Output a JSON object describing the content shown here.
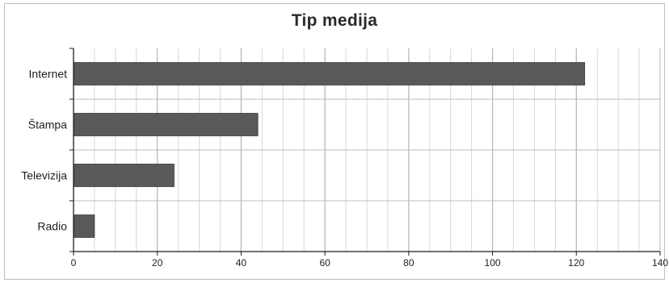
{
  "chart_data": {
    "type": "bar",
    "orientation": "horizontal",
    "title": "Tip medija",
    "categories": [
      "Internet",
      "Štampa",
      "Televizija",
      "Radio"
    ],
    "values": [
      122,
      44,
      24,
      5
    ],
    "xlim": [
      0,
      140
    ],
    "x_ticks": [
      0,
      20,
      40,
      60,
      80,
      100,
      120,
      140
    ],
    "minor_grid_step": 5,
    "grid": true,
    "legend": "none",
    "bar_color": "#595959",
    "grid_color": "#c8c8c8"
  }
}
